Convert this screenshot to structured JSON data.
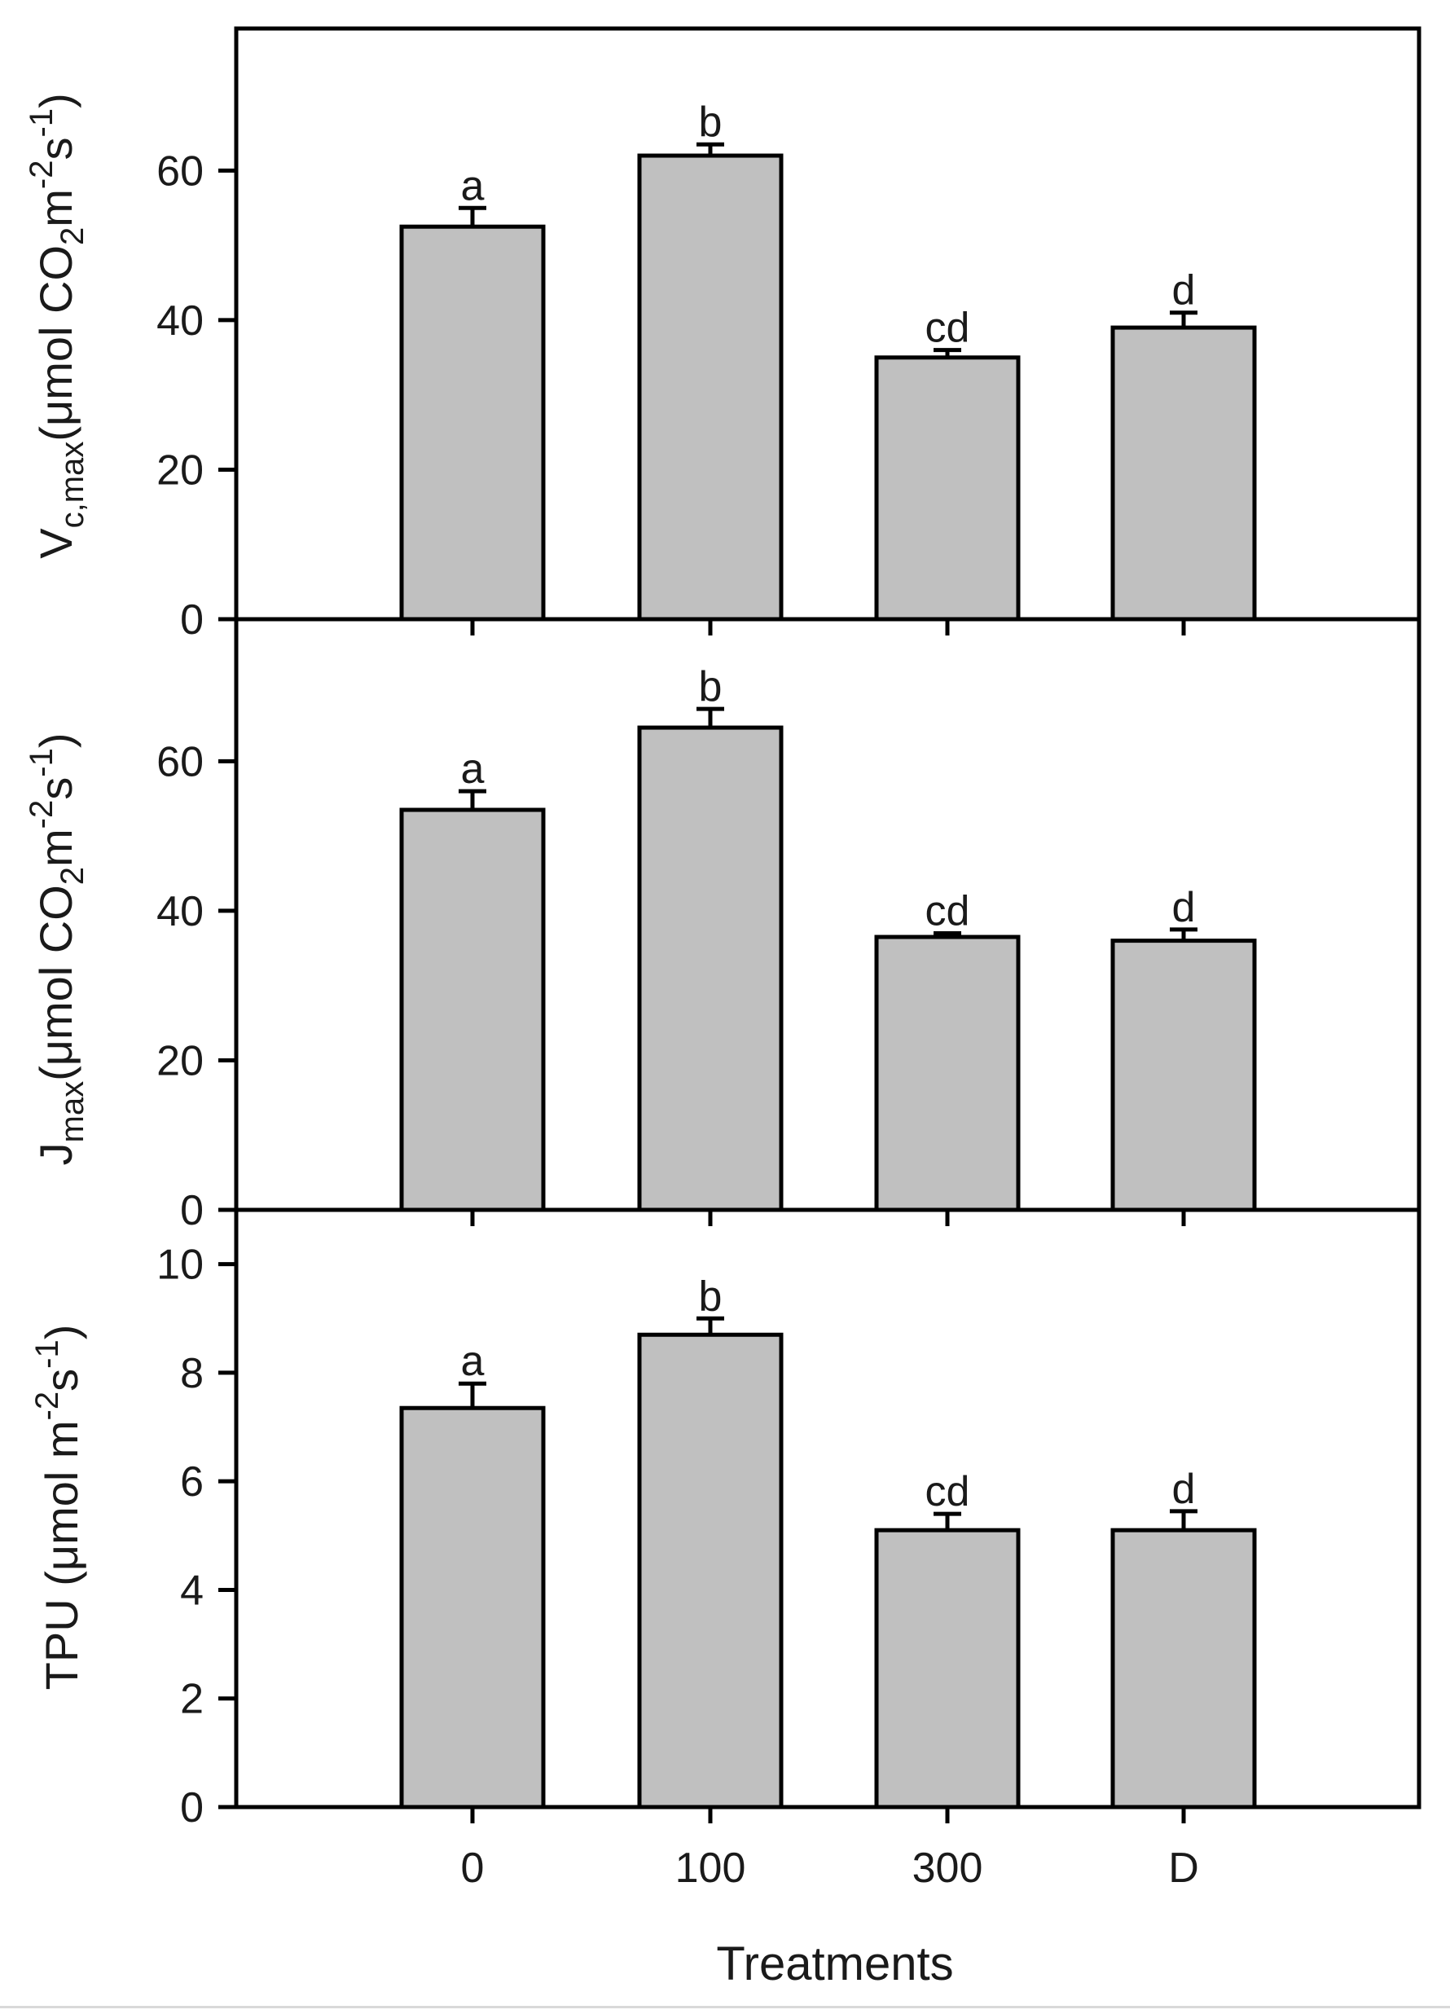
{
  "chart_data": [
    {
      "type": "bar",
      "panel": "top",
      "ylabel": {
        "prefix": "V",
        "sub": "c,max",
        "unit_start": "(μmol CO",
        "unit_sub": "2",
        "unit_mid": "m",
        "unit_sup1": "-2",
        "unit_s": "s",
        "unit_sup2": "-1",
        "unit_end": ")"
      },
      "categories": [
        "0",
        "100",
        "300",
        "D"
      ],
      "values": [
        52.5,
        62,
        35,
        39
      ],
      "errors": [
        2.5,
        1.5,
        1,
        2
      ],
      "letters": [
        "a",
        "b",
        "cd",
        "d"
      ],
      "ylim": [
        0,
        79
      ],
      "yticks": [
        0,
        20,
        40,
        60
      ],
      "color": "#c0c0c0"
    },
    {
      "type": "bar",
      "panel": "middle",
      "ylabel": {
        "prefix": "J",
        "sub": "max",
        "unit_start": "(μmol CO",
        "unit_sub": "2",
        "unit_mid": "m",
        "unit_sup1": "-2",
        "unit_s": "s",
        "unit_sup2": "-1",
        "unit_end": ")"
      },
      "categories": [
        "0",
        "100",
        "300",
        "D"
      ],
      "values": [
        53.5,
        64.5,
        36.5,
        36
      ],
      "errors": [
        2.5,
        2.5,
        0.5,
        1.5
      ],
      "letters": [
        "a",
        "b",
        "cd",
        "d"
      ],
      "ylim": [
        0,
        79
      ],
      "yticks": [
        0,
        20,
        40,
        60
      ],
      "color": "#c0c0c0"
    },
    {
      "type": "bar",
      "panel": "bottom",
      "ylabel": {
        "prefix": "TPU (μmol m",
        "sup1": "-2",
        "s": "s",
        "sup2": "-1",
        "end": ")"
      },
      "categories": [
        "0",
        "100",
        "300",
        "D"
      ],
      "values": [
        7.35,
        8.7,
        5.1,
        5.1
      ],
      "errors": [
        0.45,
        0.3,
        0.3,
        0.35
      ],
      "letters": [
        "a",
        "b",
        "cd",
        "d"
      ],
      "ylim": [
        0,
        11
      ],
      "yticks": [
        0,
        2,
        4,
        6,
        8,
        10
      ],
      "color": "#c0c0c0"
    }
  ],
  "xlabel": "Treatments"
}
